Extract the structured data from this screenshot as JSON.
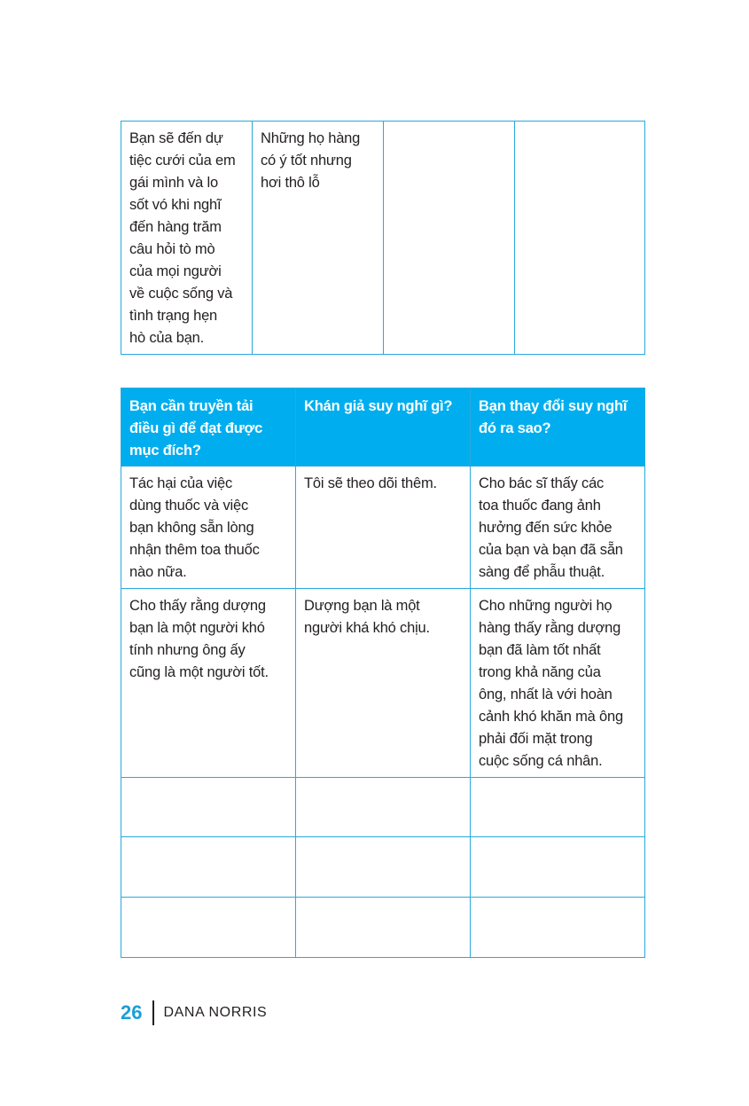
{
  "table1": {
    "rows": [
      [
        "Bạn sẽ đến dự\ntiệc cưới của em\ngái mình và lo\nsốt vó khi nghĩ\nđến hàng trăm\ncâu hỏi tò mò\ncủa mọi người\nvề cuộc sống và\ntình trạng hẹn\nhò của bạn.",
        "Những họ hàng\ncó ý tốt nhưng\nhơi thô lỗ",
        "",
        ""
      ]
    ]
  },
  "table2": {
    "headers": [
      "Bạn cần truyền tải\nđiều gì để đạt được\nmục đích?",
      "Khán giả suy nghĩ gì?",
      "Bạn thay đổi suy nghĩ\nđó ra sao?"
    ],
    "rows": [
      [
        "Tác hại của việc\ndùng thuốc và việc\nbạn không sẵn lòng\nnhận thêm toa thuốc\nnào nữa.",
        "Tôi sẽ theo dõi thêm.",
        "Cho bác sĩ thấy các\ntoa thuốc đang ảnh\nhưởng đến sức khỏe\ncủa bạn và bạn đã sẵn\nsàng để phẫu thuật."
      ],
      [
        "Cho thấy rằng dượng\nbạn là một người khó\ntính nhưng ông ấy\ncũng là một người tốt.",
        "Dượng bạn là một\nngười khá khó chịu.",
        "Cho những người họ\nhàng thấy rằng dượng\nbạn đã làm tốt nhất\ntrong khả năng của\nông, nhất là với hoàn\ncảnh khó khăn mà ông\nphải đối mặt trong\ncuộc sống cá nhân."
      ],
      [
        "",
        "",
        ""
      ],
      [
        "",
        "",
        ""
      ],
      [
        "",
        "",
        ""
      ]
    ]
  },
  "footer": {
    "page_number": "26",
    "author": "DANA NORRIS"
  },
  "colors": {
    "accent": "#00aeef",
    "border": "#29a9dc"
  }
}
